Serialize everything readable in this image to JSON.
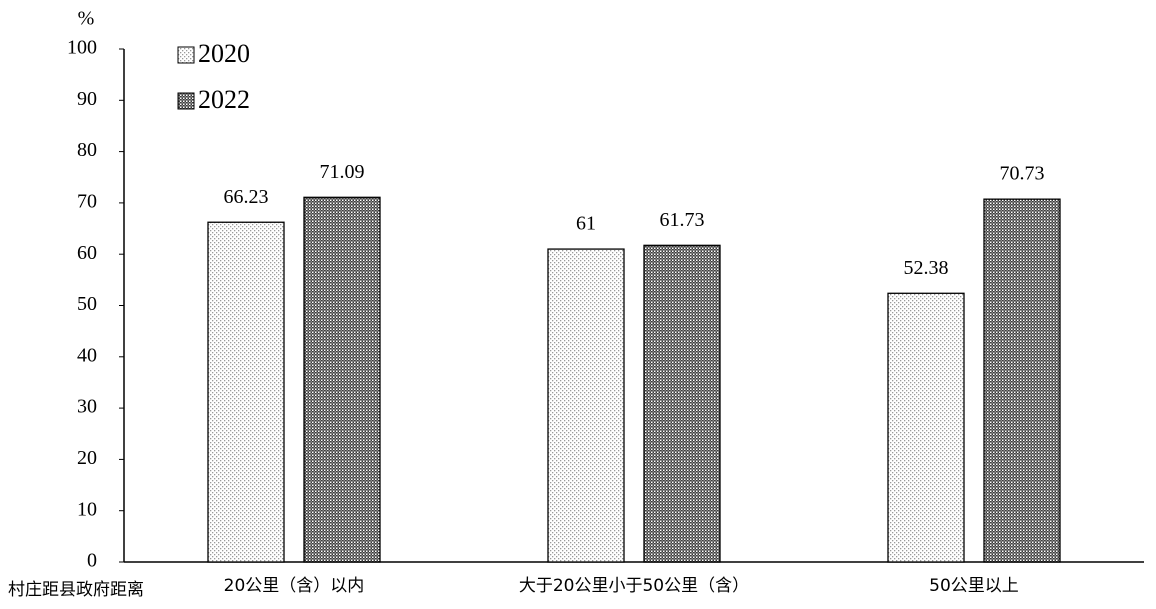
{
  "chart_data": {
    "type": "bar",
    "y_label": "%",
    "x_label": "村庄距县政府距离",
    "categories": [
      "20公里（含）以内",
      "大于20公里小于50公里（含）",
      "50公里以上"
    ],
    "series": [
      {
        "name": "2020",
        "color": "#9a9a9a",
        "values": [
          66.23,
          61,
          52.38
        ]
      },
      {
        "name": "2022",
        "color": "#3a3a3a",
        "values": [
          71.09,
          61.73,
          70.73
        ]
      }
    ],
    "ylim": [
      0,
      100
    ],
    "yticks": [
      0,
      10,
      20,
      30,
      40,
      50,
      60,
      70,
      80,
      90,
      100
    ],
    "legend": "top-left"
  }
}
